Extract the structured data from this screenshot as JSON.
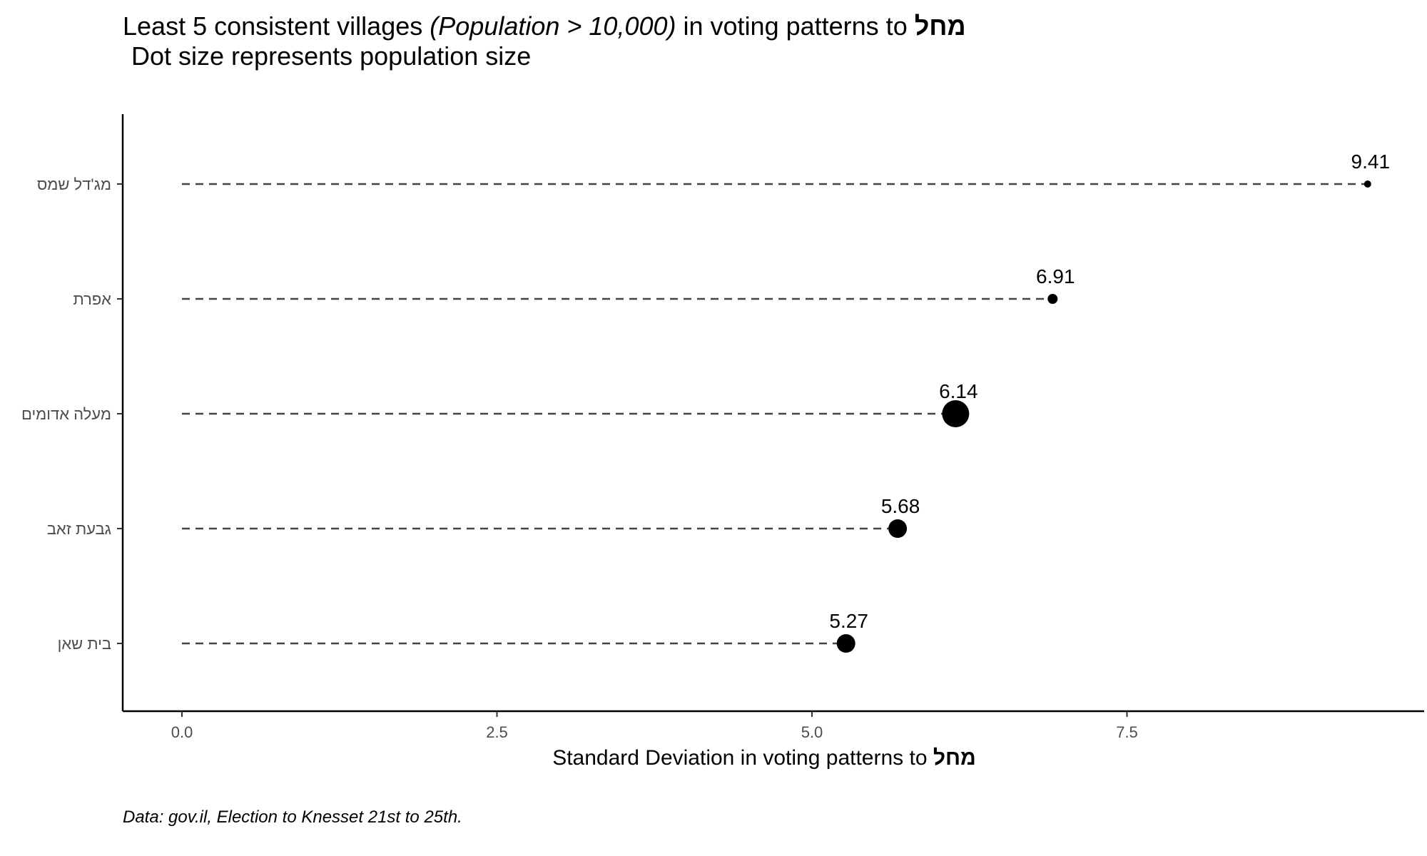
{
  "title": {
    "prefix": "Least 5 consistent villages ",
    "emphasis": "(Population > 10,000)",
    "middle": " in voting patterns to ",
    "party": "מחל",
    "subtitle": "Dot size represents population size"
  },
  "xlabel": {
    "text": "Standard Deviation in voting patterns to ",
    "party": "מחל"
  },
  "caption": "Data: gov.il, Election to Knesset 21st to 25th.",
  "chart_data": {
    "type": "scatter",
    "orientation": "horizontal-lollipop",
    "title": "Least 5 consistent villages (Population > 10,000) in voting patterns to מחל",
    "subtitle": "Dot size represents population size",
    "xlabel": "Standard Deviation in voting patterns to מחל",
    "ylabel": "",
    "xlim": [
      0,
      9.6
    ],
    "x_ticks": [
      "0.0",
      "2.5",
      "5.0",
      "7.5"
    ],
    "x_tick_values": [
      0,
      2.5,
      5.0,
      7.5
    ],
    "grid": false,
    "legend": "none",
    "categories": [
      "מג'דל שמס",
      "אפרת",
      "מעלה אדומים",
      "גבעת זאב",
      "בית שאן"
    ],
    "values": [
      9.41,
      6.91,
      6.14,
      5.68,
      5.27
    ],
    "labels": [
      "9.41",
      "6.91",
      "6.14",
      "5.68",
      "5.27"
    ],
    "size_rank": [
      "smallest",
      "small",
      "largest",
      "medium",
      "medium"
    ],
    "colors": {
      "point": "#000000",
      "segment": "#444444",
      "axis": "#000000",
      "tick_label": "#4d4d4d"
    }
  }
}
